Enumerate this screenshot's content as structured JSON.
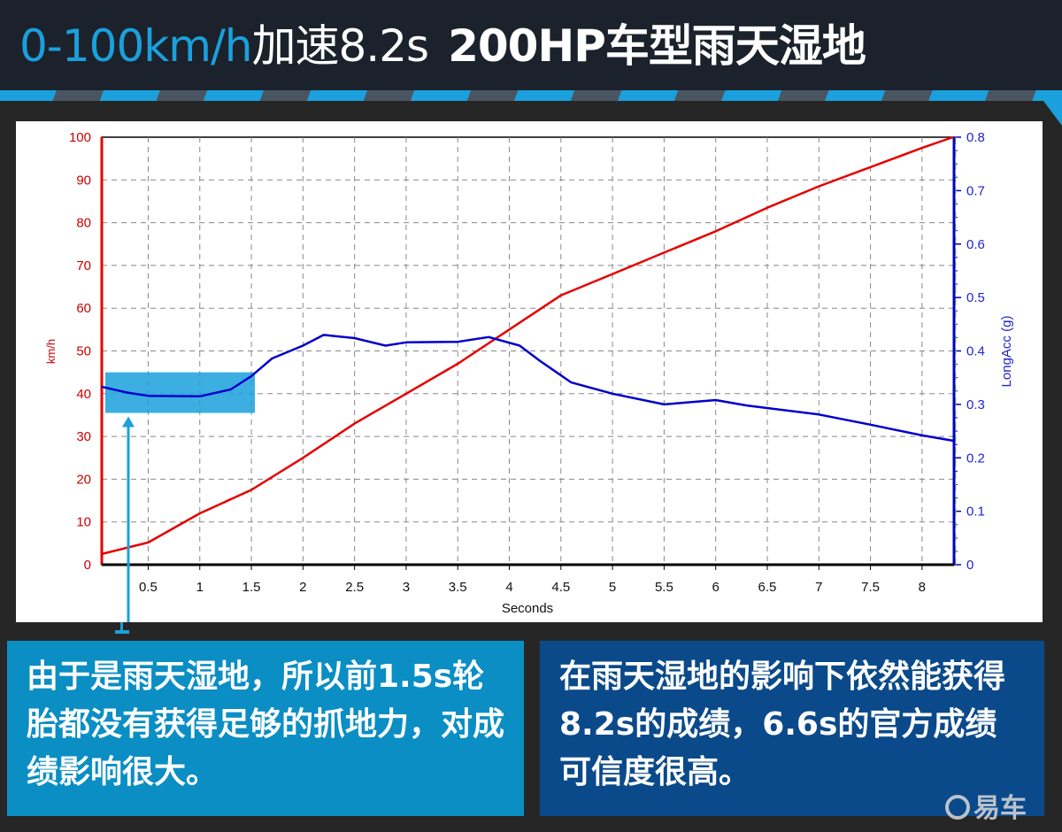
{
  "header": {
    "title_part1": "0-100km/h",
    "title_part2": "加速8.2s",
    "title_part3": "200HP车型雨天湿地"
  },
  "notes": {
    "left": "由于是雨天湿地，所以前1.5s轮胎都没有获得足够的抓地力，对成绩影响很大。",
    "right": "在雨天湿地的影响下依然能获得8.2s的成绩，6.6s的官方成绩可信度很高。"
  },
  "logo": {
    "text": "易车"
  },
  "colors": {
    "speed": "#e60000",
    "acc": "#0000cc",
    "highlight": "#1aa0dc",
    "header_bg": "#1c222b",
    "box_left": "#0a8ec4",
    "box_right": "#0b4a8a"
  },
  "chart_data": {
    "type": "line",
    "xlabel": "Seconds",
    "ylabel_left": "km/h",
    "ylabel_right": "LongAcc (g)",
    "xlim": [
      0.05,
      8.31
    ],
    "ylim_left": [
      0,
      100
    ],
    "ylim_right": [
      0,
      0.8
    ],
    "grid": true,
    "x_ticks": [
      "0.5",
      "1",
      "1.5",
      "2",
      "2.5",
      "3",
      "3.5",
      "4",
      "4.5",
      "5",
      "5.5",
      "6",
      "6.5",
      "7",
      "7.5",
      "8"
    ],
    "y_left_ticks": [
      "0",
      "10",
      "20",
      "30",
      "40",
      "50",
      "60",
      "70",
      "80",
      "90",
      "100"
    ],
    "y_right_ticks": [
      "0",
      "0.1",
      "0.2",
      "0.3",
      "0.4",
      "0.5",
      "0.6",
      "0.7",
      "0.8"
    ],
    "series": [
      {
        "axis": "left",
        "color": "#e60000",
        "x": [
          0.05,
          0.5,
          1,
          1.5,
          2,
          2.5,
          3,
          3.5,
          4,
          4.5,
          5,
          5.5,
          6,
          6.5,
          7,
          7.5,
          8,
          8.3
        ],
        "y": [
          2.5,
          5.2,
          12,
          17.5,
          25,
          33,
          40,
          47,
          55,
          63,
          68,
          73,
          78,
          83.5,
          88.5,
          93,
          97.5,
          100
        ]
      },
      {
        "axis": "right",
        "color": "#0000cc",
        "x": [
          0.05,
          0.3,
          0.5,
          1,
          1.3,
          1.5,
          1.7,
          2,
          2.2,
          2.5,
          2.8,
          3,
          3.5,
          3.8,
          4.1,
          4.3,
          4.6,
          5,
          5.5,
          6,
          6.3,
          7,
          7.5,
          8,
          8.3
        ],
        "y": [
          0.333,
          0.322,
          0.316,
          0.315,
          0.328,
          0.353,
          0.386,
          0.41,
          0.43,
          0.424,
          0.41,
          0.416,
          0.417,
          0.426,
          0.41,
          0.381,
          0.341,
          0.32,
          0.3,
          0.308,
          0.298,
          0.281,
          0.262,
          0.242,
          0.232
        ]
      }
    ],
    "highlight": {
      "x_range": [
        0.05,
        1.5
      ],
      "y_range_left": [
        35.5,
        45
      ]
    }
  }
}
